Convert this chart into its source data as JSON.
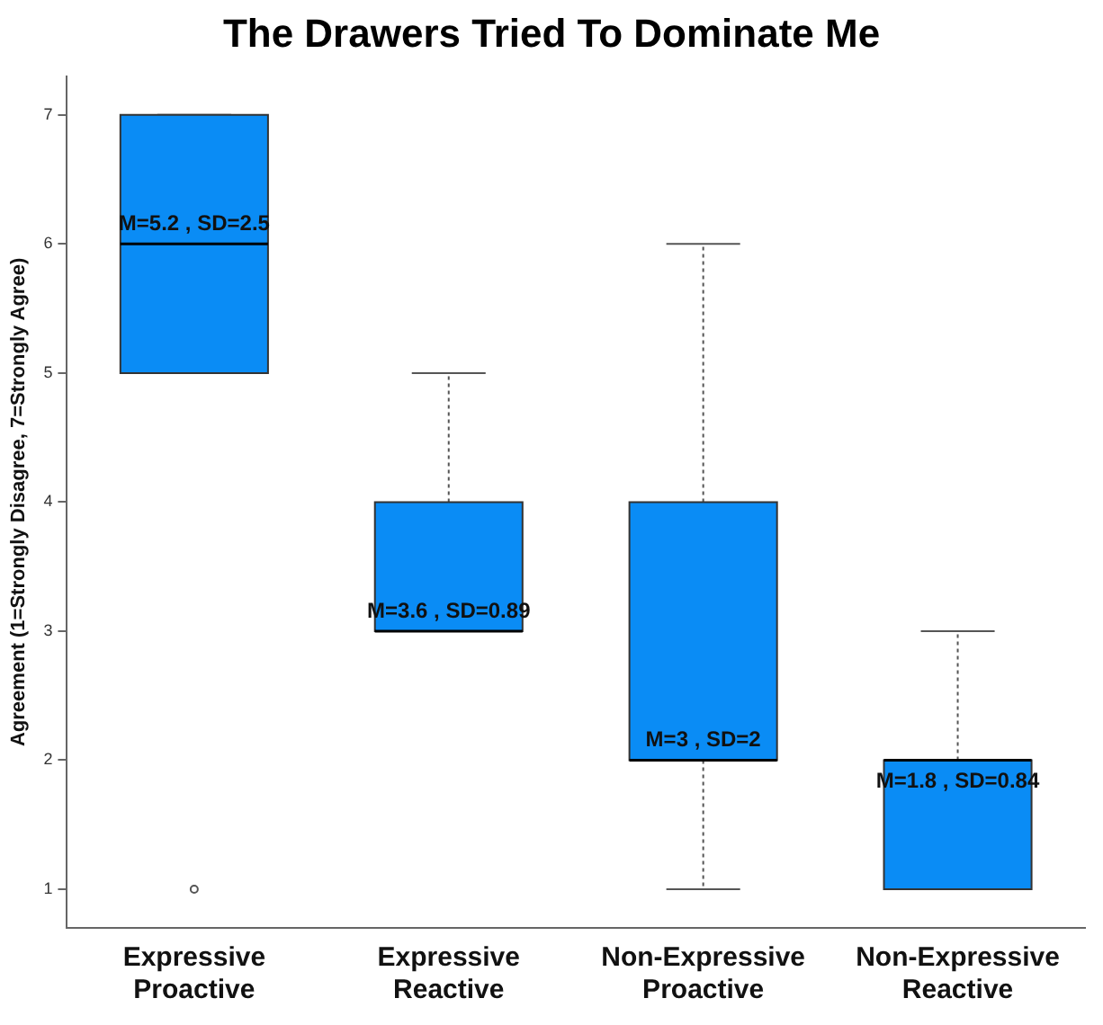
{
  "chart_data": {
    "type": "box",
    "title": "The Drawers Tried To Dominate Me",
    "ylabel": "Agreement (1=Strongly Disagree, 7=Strongly Agree)",
    "categories": [
      "Expressive Proactive",
      "Expressive Reactive",
      "Non-Expressive Proactive",
      "Non-Expressive Reactive"
    ],
    "boxes": [
      {
        "low": 5,
        "q1": 5,
        "median": 6,
        "q3": 7,
        "high": 7,
        "outliers": [
          1
        ]
      },
      {
        "low": 3,
        "q1": 3,
        "median": 3,
        "q3": 4,
        "high": 5
      },
      {
        "low": 1,
        "q1": 2,
        "median": 2,
        "q3": 4,
        "high": 6
      },
      {
        "low": 1,
        "q1": 1,
        "median": 2,
        "q3": 2,
        "high": 3
      }
    ],
    "color": "#0a8cf5",
    "ylim": [
      0.7,
      7.3
    ],
    "yticks": [
      1,
      2,
      3,
      4,
      5,
      6,
      7
    ],
    "grid": false,
    "annotations": [
      "M=5.2 , SD=2.5",
      "M=3.6 , SD=0.89",
      "M=3 , SD=2",
      "M=1.8 , SD=0.84"
    ]
  }
}
